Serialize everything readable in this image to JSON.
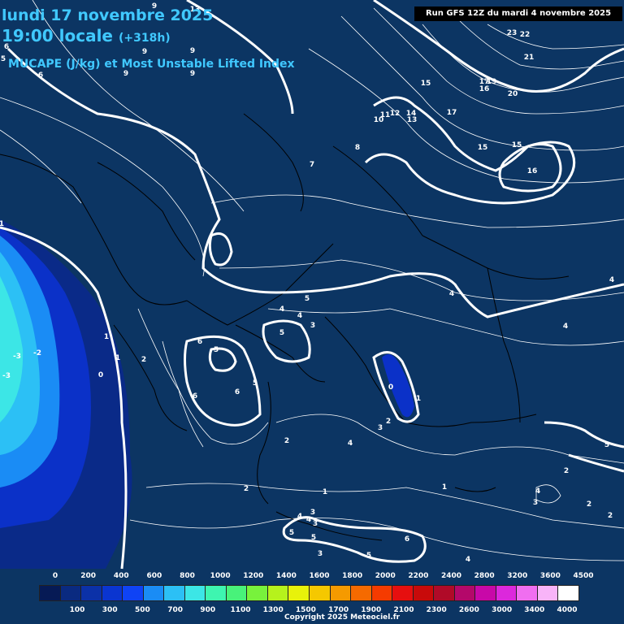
{
  "title": {
    "date_line": "lundi 17 novembre 2025",
    "time_line": "19:00 locale",
    "lead_time": "(+318h)",
    "parameter": "MUCAPE (J/kg) et Most Unstable Lifted Index"
  },
  "run_info": "Run GFS 12Z du mardi 4 novembre 2025",
  "copyright": "Copyright 2025 Meteociel.fr",
  "legend": {
    "top_ticks": [
      "0",
      "200",
      "400",
      "600",
      "800",
      "1000",
      "1200",
      "1400",
      "1600",
      "1800",
      "2000",
      "2200",
      "2400",
      "2800",
      "3200",
      "3600",
      "4500"
    ],
    "bottom_ticks": [
      "100",
      "300",
      "500",
      "700",
      "900",
      "1100",
      "1300",
      "1500",
      "1700",
      "1900",
      "2100",
      "2300",
      "2600",
      "3000",
      "3400",
      "4000"
    ],
    "colors": [
      "#061a55",
      "#0a2a80",
      "#0b31a8",
      "#0a35d0",
      "#0f43f5",
      "#1a8cf5",
      "#2cc0f5",
      "#3ce6e6",
      "#3ef5b0",
      "#48f27a",
      "#78f23c",
      "#b6f21c",
      "#e8f20a",
      "#f5c800",
      "#f59a00",
      "#f56a00",
      "#f53b00",
      "#e60f0f",
      "#c80a0a",
      "#b00a28",
      "#b4086a",
      "#c808a8",
      "#dc28dc",
      "#f06ef0",
      "#f8b4f8",
      "#ffffff"
    ]
  },
  "map": {
    "contour_labels": [
      "13",
      "9",
      "9",
      "9",
      "9",
      "9",
      "6",
      "6",
      "5",
      "-1",
      "-2",
      "-3",
      "-3",
      "1",
      "1",
      "2",
      "0",
      "6",
      "5",
      "6",
      "6",
      "5",
      "4",
      "4",
      "5",
      "3",
      "5",
      "4",
      "7",
      "8",
      "10",
      "11",
      "12",
      "14",
      "13",
      "15",
      "17",
      "15",
      "15",
      "16",
      "19",
      "17",
      "16",
      "20",
      "21",
      "22",
      "23",
      "4",
      "4",
      "4",
      "3",
      "0",
      "1",
      "2",
      "3",
      "4",
      "2",
      "2",
      "1",
      "1",
      "4",
      "3",
      "2",
      "2",
      "5",
      "2",
      "4",
      "3",
      "5",
      "5",
      "3",
      "6",
      "5",
      "4"
    ],
    "colors": {
      "background": "#0c3563",
      "borders": "#000000",
      "contours": "#ffffff",
      "li_zero": "#ffffff"
    }
  }
}
